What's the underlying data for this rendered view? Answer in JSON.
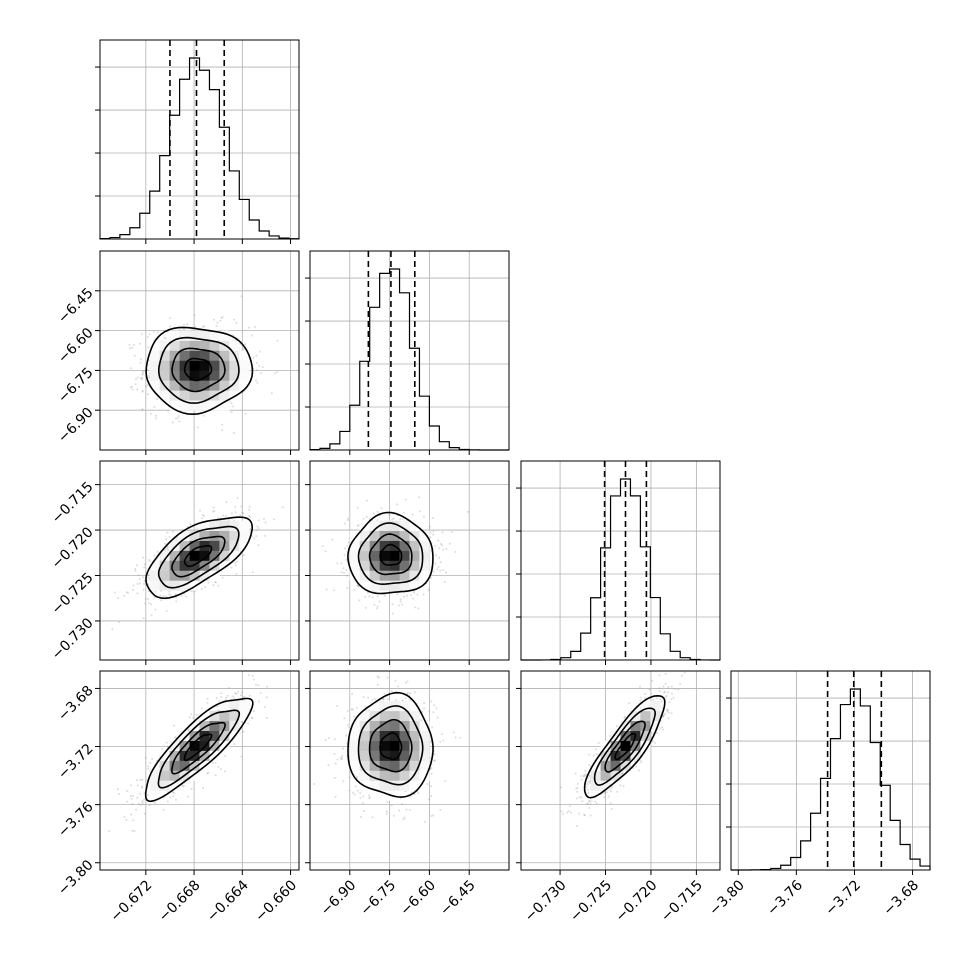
{
  "chart_data": {
    "type": "corner",
    "parameters": [
      {
        "index": 0,
        "range": [
          -0.6758,
          -0.6593
        ],
        "ticks": [
          -0.672,
          -0.668,
          -0.664,
          -0.66
        ],
        "tick_labels": [
          "−0.672",
          "−0.668",
          "−0.664",
          "−0.660"
        ],
        "mean": -0.6677,
        "sigma": 0.0022,
        "quantiles": [
          -0.67,
          -0.6678,
          -0.6655
        ]
      },
      {
        "index": 1,
        "range": [
          -7.05,
          -6.3
        ],
        "ticks": [
          -6.9,
          -6.75,
          -6.6,
          -6.45
        ],
        "tick_labels": [
          "−6.90",
          "−6.75",
          "−6.60",
          "−6.45"
        ],
        "mean": -6.745,
        "sigma": 0.08,
        "quantiles": [
          -6.83,
          -6.745,
          -6.655
        ]
      },
      {
        "index": 2,
        "range": [
          -0.7343,
          -0.7124
        ],
        "ticks": [
          -0.73,
          -0.725,
          -0.72,
          -0.715
        ],
        "tick_labels": [
          "−0.730",
          "−0.725",
          "−0.720",
          "−0.715"
        ],
        "mean": -0.7228,
        "sigma": 0.0022,
        "quantiles": [
          -0.7251,
          -0.7228,
          -0.7205
        ]
      },
      {
        "index": 3,
        "range": [
          -3.805,
          -3.668
        ],
        "ticks": [
          -3.8,
          -3.76,
          -3.72,
          -3.68
        ],
        "tick_labels": [
          "−3.80",
          "−3.76",
          "−3.72",
          "−3.68"
        ],
        "mean": -3.72,
        "sigma": 0.0175,
        "quantiles": [
          -3.7385,
          -3.7205,
          -3.7015
        ]
      }
    ],
    "correlations": {
      "1-0": 0.0,
      "2-0": 0.65,
      "2-1": 0.0,
      "3-0": 0.85,
      "3-1": 0.0,
      "3-2": 0.85
    },
    "bins": 20,
    "grid": true,
    "quantile_style": "dashed",
    "colors": {
      "line": "#000000",
      "density_high": "#000000",
      "density_low": "#ffffff",
      "points": "#9a9a9a",
      "grid": "#b0b0b0"
    }
  }
}
